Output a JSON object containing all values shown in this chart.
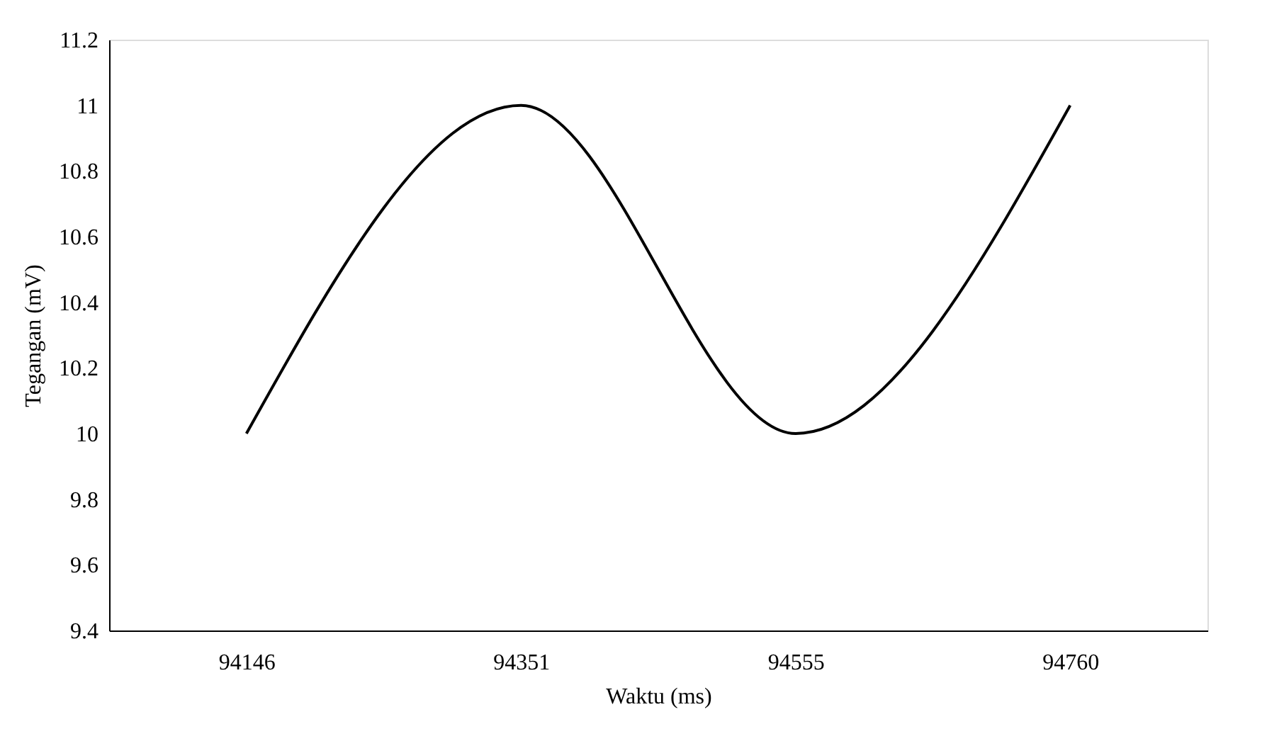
{
  "chart_data": {
    "type": "line",
    "xlabel": "Waktu (ms)",
    "ylabel": "Tegangan (mV)",
    "categories": [
      "94146",
      "94351",
      "94555",
      "94760"
    ],
    "series": [
      {
        "color": "#000000",
        "values": [
          10,
          11,
          10,
          11
        ]
      }
    ],
    "ylim": [
      9.4,
      11.2
    ],
    "yticks": [
      9.4,
      9.6,
      9.8,
      10,
      10.2,
      10.4,
      10.6,
      10.8,
      11,
      11.2
    ],
    "grid": false,
    "marker": "none",
    "line_style": "solid"
  }
}
